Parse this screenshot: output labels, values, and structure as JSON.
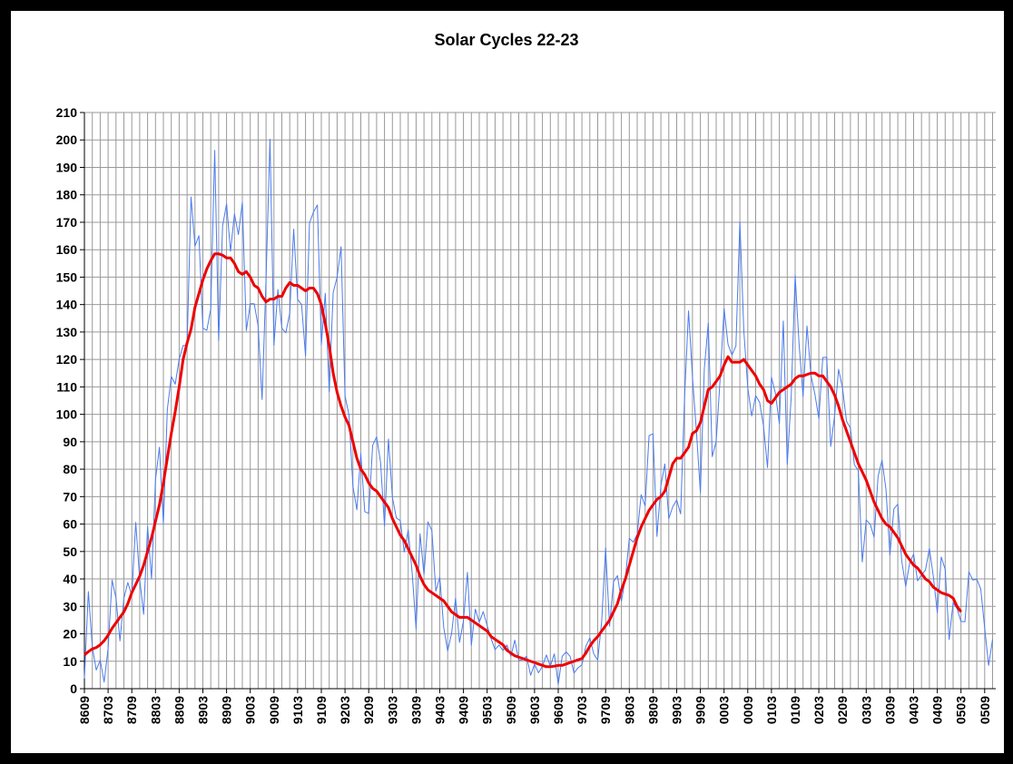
{
  "chart_data": {
    "type": "line",
    "title": "Solar Cycles 22-23",
    "categories": [
      "8609",
      null,
      null,
      null,
      null,
      null,
      "8703",
      null,
      null,
      null,
      null,
      null,
      "8709",
      null,
      null,
      null,
      null,
      null,
      "8803",
      null,
      null,
      null,
      null,
      null,
      "8809",
      null,
      null,
      null,
      null,
      null,
      "8903",
      null,
      null,
      null,
      null,
      null,
      "8909",
      null,
      null,
      null,
      null,
      null,
      "9003",
      null,
      null,
      null,
      null,
      null,
      "9009",
      null,
      null,
      null,
      null,
      null,
      "9103",
      null,
      null,
      null,
      null,
      null,
      "9109",
      null,
      null,
      null,
      null,
      null,
      "9203",
      null,
      null,
      null,
      null,
      null,
      "9209",
      null,
      null,
      null,
      null,
      null,
      "9303",
      null,
      null,
      null,
      null,
      null,
      "9309",
      null,
      null,
      null,
      null,
      null,
      "9403",
      null,
      null,
      null,
      null,
      null,
      "9409",
      null,
      null,
      null,
      null,
      null,
      "9503",
      null,
      null,
      null,
      null,
      null,
      "9509",
      null,
      null,
      null,
      null,
      null,
      "9603",
      null,
      null,
      null,
      null,
      null,
      "9609",
      null,
      null,
      null,
      null,
      null,
      "9703",
      null,
      null,
      null,
      null,
      null,
      "9709",
      null,
      null,
      null,
      null,
      null,
      "9803",
      null,
      null,
      null,
      null,
      null,
      "9809",
      null,
      null,
      null,
      null,
      null,
      "9903",
      null,
      null,
      null,
      null,
      null,
      "9909",
      null,
      null,
      null,
      null,
      null,
      "0003",
      null,
      null,
      null,
      null,
      null,
      "0009",
      null,
      null,
      null,
      null,
      null,
      "0103",
      null,
      null,
      null,
      null,
      null,
      "0109",
      null,
      null,
      null,
      null,
      null,
      "0203",
      null,
      null,
      null,
      null,
      null,
      "0209",
      null,
      null,
      null,
      null,
      null,
      "0303",
      null,
      null,
      null,
      null,
      null,
      "0309",
      null,
      null,
      null,
      null,
      null,
      "0403",
      null,
      null,
      null,
      null,
      null,
      "0409",
      null,
      null,
      null,
      null,
      null,
      "0503",
      null,
      null,
      null,
      null,
      null,
      "0509",
      null,
      null
    ],
    "series": [
      {
        "color": "#4a7bf0",
        "width": 1,
        "values": [
          3.8,
          35.4,
          15.2,
          6.8,
          10.4,
          2.4,
          14.7,
          39.6,
          33.0,
          17.4,
          33.0,
          38.7,
          33.9,
          60.6,
          39.9,
          27.1,
          59.0,
          40.0,
          76.2,
          88.0,
          60.1,
          101.8,
          113.8,
          111.0,
          120.1,
          125.1,
          125.1,
          179.2,
          161.3,
          165.1,
          131.4,
          130.6,
          138.5,
          196.2,
          126.9,
          168.7,
          176.7,
          159.4,
          173.0,
          165.5,
          177.3,
          130.5,
          140.3,
          140.3,
          132.2,
          105.4,
          149.4,
          200.3,
          125.2,
          145.5,
          131.4,
          129.7,
          136.9,
          167.5,
          141.9,
          140.0,
          121.3,
          169.7,
          173.7,
          176.3,
          125.3,
          144.1,
          108.2,
          144.4,
          150.0,
          161.1,
          106.7,
          99.8,
          73.8,
          65.2,
          85.7,
          64.5,
          63.9,
          88.7,
          91.8,
          82.6,
          59.3,
          91.0,
          69.8,
          62.2,
          61.3,
          49.8,
          57.9,
          42.3,
          21.8,
          56.5,
          41.6,
          60.8,
          57.6,
          35.6,
          40.6,
          22.3,
          13.8,
          20.2,
          33.0,
          16.9,
          24.8,
          42.4,
          15.9,
          29.0,
          24.2,
          28.1,
          23.0,
          18.2,
          14.2,
          15.9,
          13.9,
          15.9,
          11.8,
          17.7,
          10.3,
          10.6,
          11.8,
          4.9,
          8.9,
          5.8,
          8.2,
          12.3,
          8.2,
          12.7,
          1.5,
          11.8,
          13.4,
          11.8,
          5.7,
          7.6,
          8.7,
          15.5,
          18.5,
          12.7,
          10.4,
          24.4,
          51.3,
          22.8,
          39.0,
          41.2,
          31.9,
          40.3,
          54.8,
          53.4,
          56.3,
          70.7,
          66.6,
          92.2,
          92.9,
          55.5,
          74.0,
          81.9,
          62.0,
          66.3,
          68.8,
          63.7,
          106.4,
          137.7,
          113.5,
          93.7,
          71.5,
          116.7,
          133.2,
          84.6,
          90.1,
          112.9,
          138.5,
          125.5,
          121.6,
          124.9,
          170.1,
          130.5,
          109.7,
          99.4,
          106.8,
          104.4,
          95.6,
          80.6,
          113.5,
          107.7,
          96.6,
          134.0,
          81.8,
          106.4,
          150.7,
          125.5,
          106.5,
          132.2,
          114.1,
          107.4,
          98.4,
          120.7,
          120.8,
          88.3,
          99.6,
          116.4,
          109.6,
          97.5,
          95.0,
          81.6,
          79.5,
          46.2,
          61.5,
          60.0,
          55.2,
          77.4,
          83.3,
          72.7,
          48.7,
          65.5,
          67.3,
          46.5,
          37.3,
          45.8,
          49.1,
          39.3,
          41.5,
          43.2,
          51.1,
          40.9,
          27.7,
          48.0,
          43.5,
          17.9,
          31.3,
          29.2,
          24.5,
          24.4,
          42.6,
          39.6,
          39.9,
          36.4,
          22.1,
          8.5,
          18.0
        ]
      },
      {
        "color": "#ee0000",
        "width": 3,
        "values": [
          12.3,
          13.5,
          14.5,
          15.0,
          16,
          17.5,
          19.5,
          22,
          24,
          26,
          28,
          31,
          35,
          38,
          41,
          45,
          50,
          55,
          61,
          67,
          75,
          84,
          93,
          101,
          110,
          120,
          126,
          131,
          139,
          144,
          149,
          153,
          156,
          158.5,
          158.5,
          158,
          157,
          157,
          155,
          152,
          151,
          152,
          150,
          147,
          146,
          143,
          141,
          142,
          142,
          143,
          143,
          146,
          148,
          147,
          147,
          146,
          145,
          146,
          146,
          144,
          140,
          133,
          125,
          115,
          108,
          103,
          99,
          96,
          90,
          84,
          80,
          78,
          75,
          73,
          72,
          70,
          68,
          66,
          62,
          59,
          56,
          54,
          51,
          48,
          45,
          41,
          38,
          36,
          35,
          34,
          33,
          32,
          30,
          28,
          27,
          26,
          26,
          26,
          25,
          24,
          23,
          22,
          21,
          19,
          18,
          17,
          16,
          14,
          13,
          12,
          11.5,
          11,
          10.5,
          10,
          9.5,
          9,
          8.5,
          8,
          8,
          8.2,
          8.5,
          8.5,
          9,
          9.5,
          10,
          10.5,
          11,
          13,
          15.5,
          17.5,
          19,
          21,
          23,
          25,
          28,
          31,
          36,
          40,
          45,
          50,
          55,
          59,
          62,
          65,
          67,
          69,
          70,
          72,
          77,
          82,
          84,
          84,
          86,
          88,
          93,
          94,
          97,
          103,
          109,
          110,
          112,
          114,
          118,
          121,
          119,
          119,
          119,
          120,
          118,
          116,
          114,
          111,
          109,
          105,
          104,
          106,
          108,
          109,
          110,
          111,
          113,
          114,
          114,
          114.5,
          115,
          115,
          114,
          114,
          112,
          110,
          107,
          103,
          98,
          94,
          90,
          86,
          82,
          79,
          76,
          72,
          68,
          65,
          62,
          60,
          59,
          57,
          55,
          52,
          49,
          47,
          45,
          44,
          42,
          40,
          39,
          37,
          36,
          35,
          34.5,
          34,
          33,
          30,
          28,
          null,
          null,
          null,
          null,
          null,
          null,
          null,
          null
        ]
      }
    ],
    "ylim": [
      0,
      210
    ],
    "yticks": [
      0,
      10,
      20,
      30,
      40,
      50,
      60,
      70,
      80,
      90,
      100,
      110,
      120,
      130,
      140,
      150,
      160,
      170,
      180,
      190,
      200,
      210
    ],
    "grid": true
  }
}
